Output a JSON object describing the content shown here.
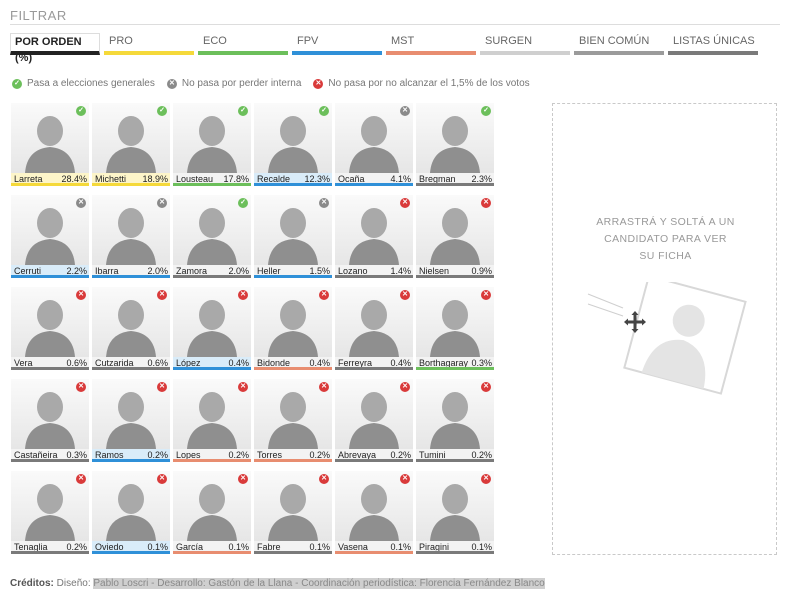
{
  "filter": {
    "title": "FILTRAR"
  },
  "tabs": [
    {
      "label": "POR ORDEN (%)",
      "color": "#222222",
      "active": true
    },
    {
      "label": "PRO",
      "color": "#f5d93a"
    },
    {
      "label": "ECO",
      "color": "#6cbf5b"
    },
    {
      "label": "FPV",
      "color": "#2f90d8"
    },
    {
      "label": "MST",
      "color": "#e88d70"
    },
    {
      "label": "SURGEN",
      "color": "#cfcfcf"
    },
    {
      "label": "BIEN COMÚN",
      "color": "#9b9b9b"
    },
    {
      "label": "LISTAS ÚNICAS",
      "color": "#7a7a7a"
    }
  ],
  "legend": [
    {
      "icon": "check-icon",
      "color": "#6cbf5b",
      "text": "Pasa a elecciones generales"
    },
    {
      "icon": "x-gray-icon",
      "color": "#8a8a8a",
      "text": "No pasa por perder interna"
    },
    {
      "icon": "x-red-icon",
      "color": "#d93a3a",
      "text": "No pasa por no alcanzar el 1,5% de los votos"
    }
  ],
  "candidates": [
    {
      "name": "Larreta",
      "pct": "28.4%",
      "status": "pass",
      "color": "#f5d93a",
      "hl": "#fdf5c9"
    },
    {
      "name": "Michetti",
      "pct": "18.9%",
      "status": "pass",
      "color": "#f5d93a",
      "hl": "#fdf5c9"
    },
    {
      "name": "Lousteau",
      "pct": "17.8%",
      "status": "pass",
      "color": "#6cbf5b"
    },
    {
      "name": "Recalde",
      "pct": "12.3%",
      "status": "pass",
      "color": "#2f90d8",
      "hl": "#d9ecf9"
    },
    {
      "name": "Ocaña",
      "pct": "4.1%",
      "status": "internal",
      "color": "#2f90d8"
    },
    {
      "name": "Bregman",
      "pct": "2.3%",
      "status": "pass",
      "color": "#7a7a7a"
    },
    {
      "name": "Cerruti",
      "pct": "2.2%",
      "status": "internal",
      "color": "#2f90d8",
      "hl": "#d9ecf9"
    },
    {
      "name": "Ibarra",
      "pct": "2.0%",
      "status": "internal",
      "color": "#2f90d8"
    },
    {
      "name": "Zamora",
      "pct": "2.0%",
      "status": "pass",
      "color": "#7a7a7a"
    },
    {
      "name": "Heller",
      "pct": "1.5%",
      "status": "internal",
      "color": "#2f90d8"
    },
    {
      "name": "Lozano",
      "pct": "1.4%",
      "status": "threshold",
      "color": "#7a7a7a"
    },
    {
      "name": "Nielsen",
      "pct": "0.9%",
      "status": "threshold",
      "color": "#7a7a7a"
    },
    {
      "name": "Vera",
      "pct": "0.6%",
      "status": "threshold",
      "color": "#7a7a7a"
    },
    {
      "name": "Cutzarida",
      "pct": "0.6%",
      "status": "threshold",
      "color": "#7a7a7a"
    },
    {
      "name": "López",
      "pct": "0.4%",
      "status": "threshold",
      "color": "#2f90d8",
      "hl": "#d9ecf9"
    },
    {
      "name": "Bidonde",
      "pct": "0.4%",
      "status": "threshold",
      "color": "#e88d70"
    },
    {
      "name": "Ferreyra",
      "pct": "0.4%",
      "status": "threshold",
      "color": "#7a7a7a"
    },
    {
      "name": "Borthagaray",
      "pct": "0.3%",
      "status": "threshold",
      "color": "#6cbf5b"
    },
    {
      "name": "Castañeira",
      "pct": "0.3%",
      "status": "threshold",
      "color": "#7a7a7a"
    },
    {
      "name": "Ramos",
      "pct": "0.2%",
      "status": "threshold",
      "color": "#2f90d8",
      "hl": "#d9ecf9"
    },
    {
      "name": "Lopes",
      "pct": "0.2%",
      "status": "threshold",
      "color": "#e88d70"
    },
    {
      "name": "Torres",
      "pct": "0.2%",
      "status": "threshold",
      "color": "#e88d70"
    },
    {
      "name": "Abrevaya",
      "pct": "0.2%",
      "status": "threshold",
      "color": "#7a7a7a"
    },
    {
      "name": "Tumini",
      "pct": "0.2%",
      "status": "threshold",
      "color": "#7a7a7a"
    },
    {
      "name": "Tenaglia",
      "pct": "0.2%",
      "status": "threshold",
      "color": "#7a7a7a"
    },
    {
      "name": "Oviedo",
      "pct": "0.1%",
      "status": "threshold",
      "color": "#2f90d8",
      "hl": "#d9ecf9"
    },
    {
      "name": "García",
      "pct": "0.1%",
      "status": "threshold",
      "color": "#e88d70"
    },
    {
      "name": "Fabre",
      "pct": "0.1%",
      "status": "threshold",
      "color": "#7a7a7a"
    },
    {
      "name": "Vasena",
      "pct": "0.1%",
      "status": "threshold",
      "color": "#e88d70"
    },
    {
      "name": "Piragini",
      "pct": "0.1%",
      "status": "threshold",
      "color": "#7a7a7a"
    }
  ],
  "status_colors": {
    "pass": "#6cbf5b",
    "internal": "#8a8a8a",
    "threshold": "#d93a3a"
  },
  "dropzone": {
    "lines": [
      "ARRASTRÁ Y SOLTÁ A UN",
      "CANDIDATO PARA VER",
      "SU FICHA"
    ]
  },
  "credits": {
    "label": "Créditos:",
    "prefix": " Diseño: ",
    "text": "Pablo Loscri - Desarrollo: Gastón de la Llana - Coordinación periodística: Florencia Fernández Blanco"
  }
}
